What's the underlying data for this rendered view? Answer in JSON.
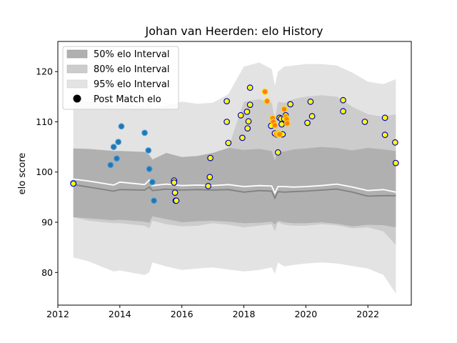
{
  "chart_data": {
    "type": "area",
    "title": "Johan van Heerden: elo History",
    "xlabel": "",
    "ylabel": "elo score",
    "xlim": [
      2012.0,
      2023.4
    ],
    "ylim": [
      73.5,
      126.0
    ],
    "xticks": [
      "2012",
      "2014",
      "2016",
      "2018",
      "2020",
      "2022"
    ],
    "xtick_values": [
      2012,
      2014,
      2016,
      2018,
      2020,
      2022
    ],
    "yticks": [
      "80",
      "90",
      "100",
      "110",
      "120"
    ],
    "ytick_values": [
      80,
      90,
      100,
      110,
      120
    ],
    "grid": false,
    "legend_position": "top-left",
    "legend": {
      "band50": "50% elo Interval",
      "band80": "80% elo Interval",
      "band95": "95% elo Interval",
      "points": "Post Match elo"
    },
    "colors": {
      "band50": "#b0b0b0",
      "band80": "#cccccc",
      "band95": "#e3e3e3",
      "median_line": "#808080",
      "mean_line": "#ffffff",
      "blue_point": "#1f77b4",
      "yellow_point_fill": "#ffff00",
      "yellow_point_edge": "#0000cc",
      "orange_point_fill": "#ff7f0e",
      "orange_point_edge": "#ffd700"
    },
    "bands": {
      "x": [
        2012.5,
        2013.0,
        2013.8,
        2014.0,
        2014.8,
        2014.95,
        2015.05,
        2015.5,
        2016.0,
        2016.5,
        2017.0,
        2017.5,
        2018.0,
        2018.5,
        2018.9,
        2019.0,
        2019.1,
        2019.3,
        2019.6,
        2020.0,
        2020.5,
        2021.0,
        2021.5,
        2022.0,
        2022.5,
        2022.9
      ],
      "band95": {
        "upper": [
          114.5,
          114.0,
          113.2,
          113.8,
          113.0,
          114.0,
          112.5,
          113.3,
          114.0,
          113.6,
          113.8,
          115.5,
          121.0,
          121.8,
          120.5,
          117.2,
          120.0,
          121.0,
          121.2,
          121.5,
          121.5,
          121.2,
          119.8,
          118.0,
          117.5,
          118.5
        ],
        "lower": [
          83.0,
          82.2,
          80.2,
          80.4,
          79.5,
          80.0,
          82.0,
          81.2,
          80.5,
          80.8,
          81.0,
          80.6,
          80.2,
          80.5,
          81.0,
          79.7,
          82.0,
          81.2,
          81.5,
          81.8,
          82.0,
          81.8,
          81.3,
          80.8,
          79.5,
          75.8
        ]
      },
      "band80": {
        "upper": [
          104.0,
          104.0,
          103.5,
          103.5,
          103.2,
          103.0,
          102.2,
          103.0,
          102.5,
          102.7,
          103.5,
          104.8,
          114.0,
          114.5,
          113.8,
          110.5,
          114.0,
          113.8,
          114.5,
          115.0,
          115.3,
          115.0,
          113.0,
          111.5,
          111.0,
          111.5
        ],
        "lower": [
          91.0,
          90.3,
          89.8,
          89.8,
          89.3,
          88.8,
          90.3,
          89.6,
          89.2,
          89.3,
          89.8,
          89.5,
          89.0,
          89.3,
          89.6,
          88.2,
          90.0,
          89.5,
          89.3,
          89.3,
          89.6,
          89.4,
          88.8,
          89.0,
          88.2,
          85.5
        ]
      },
      "band50": {
        "upper": [
          104.7,
          104.6,
          104.2,
          104.2,
          104.0,
          103.4,
          102.5,
          103.8,
          103.0,
          103.2,
          103.8,
          104.8,
          104.4,
          104.6,
          104.2,
          102.3,
          104.0,
          104.1,
          104.5,
          104.7,
          105.0,
          104.8,
          104.3,
          104.8,
          104.5,
          104.2
        ],
        "lower": [
          91.0,
          90.8,
          90.4,
          90.5,
          90.1,
          89.9,
          91.2,
          90.6,
          90.0,
          90.2,
          90.3,
          90.1,
          89.8,
          89.9,
          90.1,
          89.5,
          90.3,
          90.0,
          89.8,
          89.8,
          90.0,
          89.7,
          89.2,
          89.5,
          89.4,
          89.0
        ]
      },
      "median": [
        97.5,
        97.0,
        96.2,
        96.5,
        96.4,
        97.0,
        96.3,
        96.6,
        96.4,
        96.5,
        96.4,
        96.5,
        96.0,
        96.3,
        96.2,
        94.8,
        96.1,
        96.0,
        96.1,
        96.2,
        96.4,
        96.6,
        96.0,
        95.2,
        95.3,
        95.3
      ],
      "mean": [
        98.6,
        98.2,
        97.4,
        98.0,
        97.5,
        98.4,
        97.3,
        97.6,
        97.3,
        97.4,
        97.3,
        97.5,
        97.1,
        97.3,
        97.2,
        95.8,
        97.1,
        97.1,
        97.0,
        97.1,
        97.3,
        97.6,
        97.0,
        96.3,
        96.5,
        96.0
      ]
    },
    "series": [
      {
        "style": "blue",
        "x": [
          2012.5,
          2013.7,
          2013.8,
          2013.9,
          2013.95,
          2014.05,
          2014.8,
          2014.92,
          2014.95,
          2015.05,
          2015.1
        ],
        "y": [
          97.8,
          101.4,
          105.0,
          102.7,
          106.0,
          109.1,
          107.8,
          104.3,
          100.6,
          98.0,
          94.3
        ]
      },
      {
        "style": "yellow",
        "x": [
          2012.5,
          2015.75,
          2015.75,
          2015.78,
          2015.8,
          2015.82,
          2016.85,
          2016.9,
          2016.92,
          2017.45,
          2017.45,
          2017.5,
          2017.9,
          2017.95,
          2018.1,
          2018.12,
          2018.15,
          2018.2,
          2018.2,
          2018.88,
          2019.0,
          2019.05,
          2019.1,
          2019.15,
          2019.2,
          2019.22,
          2019.25,
          2019.3,
          2019.35,
          2019.5,
          2020.05,
          2020.15,
          2020.2,
          2021.2,
          2021.2,
          2021.9,
          2022.55,
          2022.55,
          2022.88,
          2022.9
        ],
        "y": [
          97.7,
          98.3,
          97.9,
          95.9,
          94.3,
          94.3,
          97.2,
          99.0,
          102.8,
          114.1,
          110.0,
          105.8,
          111.3,
          106.8,
          112.0,
          108.7,
          110.1,
          113.4,
          116.8,
          109.2,
          107.7,
          107.5,
          103.9,
          110.8,
          110.6,
          109.5,
          107.5,
          110.6,
          111.3,
          113.5,
          109.8,
          114.0,
          111.1,
          114.3,
          112.1,
          110.0,
          110.8,
          107.4,
          105.9,
          101.8
        ]
      },
      {
        "style": "orange",
        "x": [
          2018.68,
          2018.75,
          2018.93,
          2018.95,
          2019.0,
          2019.05,
          2019.1,
          2019.12,
          2019.15,
          2019.3,
          2019.35,
          2019.38,
          2019.4
        ],
        "y": [
          116.0,
          114.1,
          110.7,
          110.0,
          109.3,
          107.6,
          107.7,
          107.5,
          107.5,
          112.5,
          111.0,
          110.5,
          109.7
        ]
      }
    ]
  }
}
